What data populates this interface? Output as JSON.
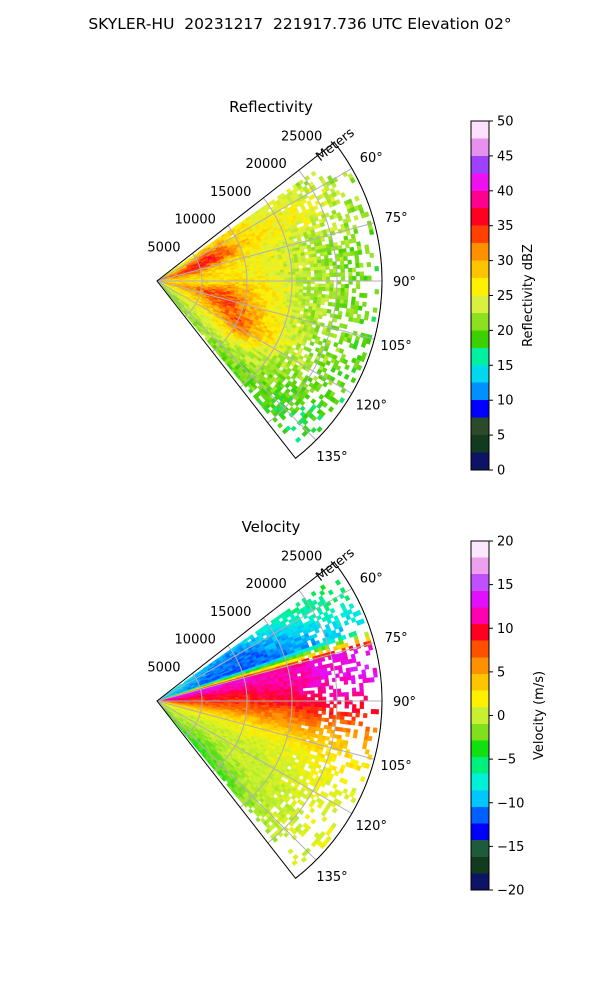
{
  "figure": {
    "title": "SKYLER-HU  20231217  221917.736 UTC Elevation 02°"
  },
  "colors": {
    "grid": "#b0b0b0",
    "axis": "#000000"
  },
  "chart_data": [
    {
      "type": "heatmap",
      "title": "Reflectivity",
      "projection": "polar sector",
      "radial_label": "Meters",
      "radial_ticks": [
        "5000",
        "10000",
        "15000",
        "20000",
        "25000"
      ],
      "radial_tick_values": [
        5000,
        10000,
        15000,
        20000,
        25000
      ],
      "r_max": 25000,
      "angle_range_deg": [
        52,
        142
      ],
      "angle_ticks": [
        "60°",
        "75°",
        "90°",
        "105°",
        "120°",
        "135°"
      ],
      "angle_tick_values": [
        60,
        75,
        90,
        105,
        120,
        135
      ],
      "grid": true,
      "colorbar": {
        "label": "Reflectivity dBZ",
        "range": [
          0,
          50
        ],
        "ticks": [
          "0",
          "5",
          "10",
          "15",
          "20",
          "25",
          "30",
          "35",
          "40",
          "45",
          "50"
        ],
        "tick_values": [
          0,
          5,
          10,
          15,
          20,
          25,
          30,
          35,
          40,
          45,
          50
        ],
        "stops": [
          "#0d1466",
          "#123a1e",
          "#2a4a2a",
          "#0000ff",
          "#0090ff",
          "#00d8f0",
          "#00f0a0",
          "#3cd000",
          "#8ce020",
          "#d8f040",
          "#fff000",
          "#ffc400",
          "#ff9000",
          "#ff4000",
          "#ff0020",
          "#ff0090",
          "#ee10ee",
          "#a040ff",
          "#e890ee",
          "#fce0fc"
        ]
      },
      "approx_field": {
        "angles_deg": [
          55,
          60,
          65,
          70,
          75,
          80,
          85,
          90,
          95,
          100,
          105,
          110,
          115,
          120,
          125,
          130,
          135,
          140
        ],
        "ranges_m": [
          2000,
          4000,
          6000,
          8000,
          10000,
          12000,
          14000,
          16000,
          18000,
          20000,
          22000,
          24000
        ],
        "values_dbz": [
          [
            24,
            26,
            28,
            28,
            27,
            26,
            25,
            24,
            23,
            22,
            21,
            20
          ],
          [
            26,
            30,
            32,
            30,
            28,
            26,
            25,
            26,
            25,
            24,
            22,
            21
          ],
          [
            30,
            34,
            36,
            33,
            29,
            27,
            26,
            26,
            25,
            24,
            23,
            22
          ],
          [
            33,
            36,
            35,
            32,
            28,
            26,
            25,
            24,
            24,
            23,
            22,
            21
          ],
          [
            34,
            35,
            31,
            28,
            26,
            25,
            24,
            23,
            22,
            22,
            21,
            20
          ],
          [
            30,
            30,
            28,
            27,
            26,
            25,
            24,
            23,
            22,
            21,
            20,
            20
          ],
          [
            28,
            28,
            27,
            27,
            26,
            25,
            24,
            23,
            22,
            21,
            20,
            19
          ],
          [
            27,
            27,
            26,
            27,
            27,
            26,
            25,
            23,
            22,
            21,
            20,
            19
          ],
          [
            28,
            29,
            30,
            31,
            29,
            27,
            25,
            23,
            22,
            21,
            20,
            19
          ],
          [
            30,
            32,
            34,
            33,
            30,
            27,
            25,
            23,
            22,
            21,
            20,
            19
          ],
          [
            29,
            31,
            34,
            35,
            31,
            28,
            25,
            23,
            22,
            21,
            20,
            19
          ],
          [
            27,
            29,
            31,
            34,
            32,
            29,
            26,
            24,
            22,
            21,
            20,
            19
          ],
          [
            25,
            27,
            29,
            32,
            34,
            30,
            27,
            24,
            22,
            21,
            20,
            19
          ],
          [
            24,
            26,
            27,
            29,
            33,
            29,
            26,
            23,
            22,
            21,
            20,
            19
          ],
          [
            23,
            24,
            25,
            26,
            27,
            25,
            23,
            22,
            21,
            20,
            19,
            18
          ],
          [
            22,
            23,
            24,
            24,
            24,
            23,
            22,
            21,
            20,
            19,
            18,
            18
          ],
          [
            21,
            22,
            22,
            22,
            21,
            21,
            20,
            20,
            19,
            18,
            18,
            17
          ],
          [
            20,
            21,
            21,
            21,
            20,
            20,
            19,
            19,
            18,
            18,
            17,
            17
          ]
        ]
      }
    },
    {
      "type": "heatmap",
      "title": "Velocity",
      "projection": "polar sector",
      "radial_label": "Meters",
      "radial_ticks": [
        "5000",
        "10000",
        "15000",
        "20000",
        "25000"
      ],
      "radial_tick_values": [
        5000,
        10000,
        15000,
        20000,
        25000
      ],
      "r_max": 25000,
      "angle_range_deg": [
        52,
        142
      ],
      "angle_ticks": [
        "60°",
        "75°",
        "90°",
        "105°",
        "120°",
        "135°"
      ],
      "angle_tick_values": [
        60,
        75,
        90,
        105,
        120,
        135
      ],
      "grid": true,
      "colorbar": {
        "label": "Velocity (m/s)",
        "range": [
          -20,
          20
        ],
        "ticks": [
          "−20",
          "−15",
          "−10",
          "−5",
          "0",
          "5",
          "10",
          "15",
          "20"
        ],
        "tick_values": [
          -20,
          -15,
          -10,
          -5,
          0,
          5,
          10,
          15,
          20
        ],
        "stops": [
          "#0d1466",
          "#123a1e",
          "#1e5a3c",
          "#0000ff",
          "#0060ff",
          "#00c8ff",
          "#00f0d8",
          "#00f080",
          "#10e010",
          "#80e020",
          "#c8f030",
          "#fff000",
          "#ffc400",
          "#ff9000",
          "#ff5000",
          "#ff0020",
          "#ff00b0",
          "#e010ff",
          "#c050ff",
          "#eea0f0",
          "#fce8fc"
        ]
      },
      "approx_field": {
        "angles_deg": [
          55,
          60,
          65,
          70,
          75,
          80,
          85,
          90,
          95,
          100,
          105,
          110,
          115,
          120,
          125,
          130,
          135,
          140
        ],
        "ranges_m": [
          2000,
          4000,
          6000,
          8000,
          10000,
          12000,
          14000,
          16000,
          18000,
          20000,
          22000,
          24000
        ],
        "values_ms": [
          [
            -8,
            -9,
            -10,
            -11,
            -10,
            -9,
            -8,
            -7,
            -6,
            -6,
            -5,
            -5
          ],
          [
            -9,
            -10,
            -11,
            -12,
            -12,
            -11,
            -10,
            -9,
            -8,
            -7,
            -6,
            -6
          ],
          [
            -10,
            -11,
            -12,
            -12,
            -12,
            -12,
            -11,
            -10,
            -10,
            -9,
            -8,
            -8
          ],
          [
            -10,
            -11,
            -12,
            -12,
            -12,
            -12,
            -12,
            -11,
            -11,
            -10,
            -10,
            -9
          ],
          [
            14,
            14,
            14,
            13,
            13,
            12,
            12,
            12,
            13,
            13,
            13,
            12
          ],
          [
            13,
            12,
            12,
            12,
            12,
            12,
            12,
            12,
            13,
            13,
            14,
            14
          ],
          [
            11,
            10,
            10,
            10,
            10,
            11,
            11,
            12,
            12,
            13,
            13,
            13
          ],
          [
            10,
            9,
            9,
            9,
            9,
            9,
            10,
            10,
            10,
            11,
            11,
            11
          ],
          [
            7,
            7,
            7,
            7,
            7,
            7,
            7,
            8,
            8,
            8,
            8,
            8
          ],
          [
            4,
            4,
            4,
            4,
            4,
            5,
            5,
            5,
            5,
            5,
            5,
            6
          ],
          [
            2,
            2,
            2,
            2,
            2,
            2,
            2,
            3,
            3,
            3,
            3,
            3
          ],
          [
            1,
            1,
            1,
            1,
            1,
            1,
            1,
            1,
            2,
            2,
            2,
            2
          ],
          [
            1,
            0,
            0,
            0,
            0,
            0,
            1,
            1,
            1,
            1,
            1,
            1
          ],
          [
            0,
            0,
            0,
            0,
            0,
            0,
            0,
            0,
            1,
            1,
            1,
            1
          ],
          [
            0,
            -1,
            -1,
            -1,
            0,
            0,
            0,
            0,
            0,
            1,
            1,
            1
          ],
          [
            -1,
            -1,
            -2,
            -2,
            -1,
            -1,
            0,
            0,
            0,
            0,
            1,
            1
          ],
          [
            -2,
            -2,
            -3,
            -3,
            -2,
            -2,
            -1,
            -1,
            0,
            0,
            0,
            0
          ],
          [
            -3,
            -3,
            -4,
            -4,
            -3,
            -3,
            -2,
            -2,
            -1,
            -1,
            0,
            0
          ]
        ]
      }
    }
  ]
}
